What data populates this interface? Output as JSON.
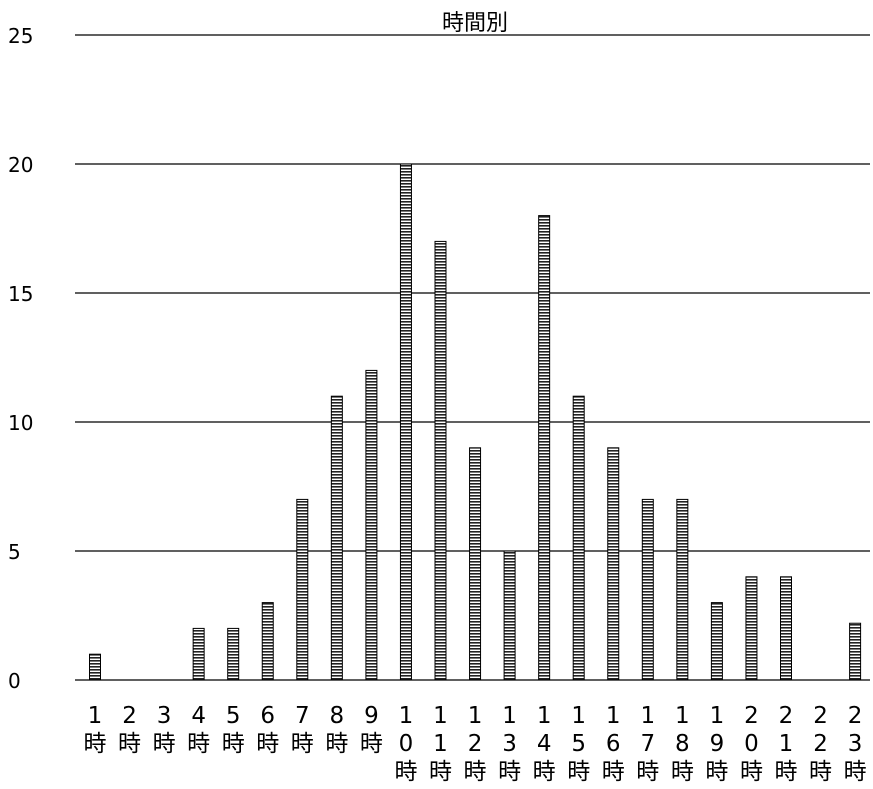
{
  "chart_data": {
    "type": "bar",
    "title": "時間別",
    "xlabel": "",
    "ylabel": "",
    "ylim": [
      0,
      25
    ],
    "yticks": [
      0,
      5,
      10,
      15,
      20,
      25
    ],
    "grid": true,
    "categories": [
      "1時",
      "2時",
      "3時",
      "4時",
      "5時",
      "6時",
      "7時",
      "8時",
      "9時",
      "10時",
      "11時",
      "12時",
      "13時",
      "14時",
      "15時",
      "16時",
      "17時",
      "18時",
      "19時",
      "20時",
      "21時",
      "22時",
      "23時"
    ],
    "values": [
      1,
      0,
      0,
      2,
      2,
      3,
      7,
      11,
      12,
      20,
      17,
      9,
      5,
      18,
      11,
      9,
      7,
      7,
      3,
      4,
      4,
      0,
      2.2
    ]
  }
}
